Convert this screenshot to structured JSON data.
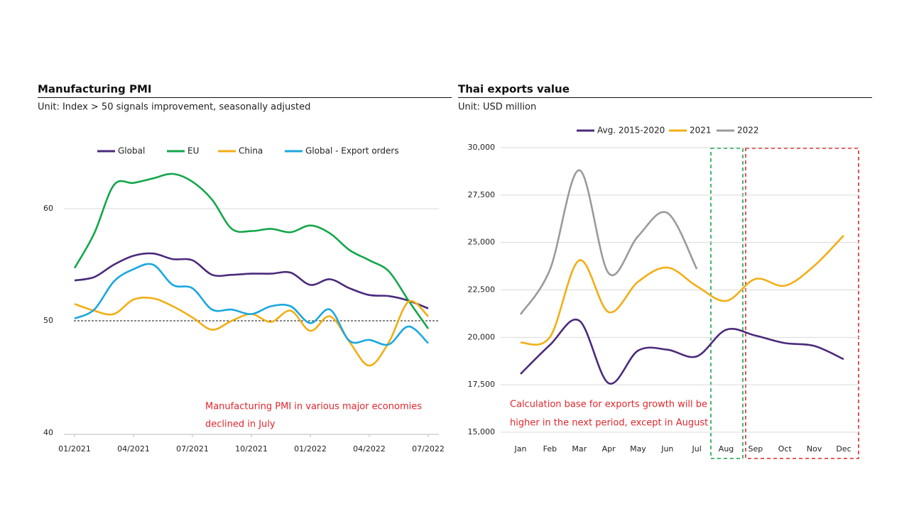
{
  "chart_data": [
    {
      "type": "line",
      "title": "Manufacturing PMI",
      "subtitle": "Unit: Index > 50 signals improvement, seasonally adjusted",
      "categories": [
        "01/2021",
        null,
        null,
        "04/2021",
        null,
        null,
        "07/2021",
        null,
        null,
        "10/2021",
        null,
        null,
        "01/2022",
        null,
        null,
        "04/2022",
        null,
        null,
        "07/2022"
      ],
      "series": [
        {
          "name": "Global",
          "color": "#4b2a7b",
          "values": [
            53.6,
            53.9,
            55.0,
            55.8,
            56.0,
            55.5,
            55.4,
            54.1,
            54.1,
            54.2,
            54.2,
            54.3,
            53.2,
            53.7,
            52.9,
            52.3,
            52.2,
            51.8,
            51.1
          ]
        },
        {
          "name": "EU",
          "color": "#13a64a",
          "values": [
            54.7,
            57.8,
            62.1,
            62.3,
            62.7,
            63.1,
            62.4,
            60.8,
            58.2,
            58.0,
            58.2,
            57.9,
            58.5,
            57.8,
            56.3,
            55.4,
            54.4,
            51.8,
            49.3
          ]
        },
        {
          "name": "China",
          "color": "#f2ae14",
          "values": [
            51.5,
            50.9,
            50.6,
            51.9,
            52.0,
            51.3,
            50.3,
            49.2,
            50.0,
            50.6,
            49.9,
            50.9,
            49.1,
            50.4,
            48.1,
            46.0,
            48.1,
            51.7,
            50.4
          ]
        },
        {
          "name": "Global - Export orders",
          "color": "#1aa7e0",
          "values": [
            50.2,
            51.0,
            53.5,
            54.6,
            55.0,
            53.2,
            52.9,
            51.0,
            51.0,
            50.6,
            51.3,
            51.3,
            49.8,
            51.0,
            48.2,
            48.3,
            47.9,
            49.5,
            48.0
          ]
        }
      ],
      "ylim": [
        40,
        65
      ],
      "yticks": [
        40,
        50,
        60
      ],
      "reference_line": 50,
      "grid": true,
      "legend": "top",
      "annotation": [
        "Manufacturing PMI in various major economies",
        "declined in July"
      ]
    },
    {
      "type": "line",
      "title": "Thai exports value",
      "subtitle": "Unit: USD million",
      "categories": [
        "Jan",
        "Feb",
        "Mar",
        "Apr",
        "May",
        "Jun",
        "Jul",
        "Aug",
        "Sep",
        "Oct",
        "Nov",
        "Dec"
      ],
      "series": [
        {
          "name": "Avg. 2015-2020",
          "color": "#4b2a7b",
          "values": [
            18070,
            19600,
            20880,
            17580,
            19300,
            19350,
            19000,
            20400,
            20090,
            19700,
            19550,
            18850
          ]
        },
        {
          "name": "2021",
          "color": "#f2ae14",
          "values": [
            19720,
            20015,
            24060,
            21330,
            22930,
            23680,
            22700,
            21920,
            23080,
            22720,
            23770,
            25370
          ]
        },
        {
          "name": "2022",
          "color": "#9a9a9a",
          "values": [
            21210,
            23570,
            28810,
            23380,
            25330,
            26560,
            23600,
            null,
            null,
            null,
            null,
            null
          ]
        }
      ],
      "ylim": [
        15000,
        30000
      ],
      "yticks": [
        {
          "value": 15000,
          "label": "15,000"
        },
        {
          "value": 17500,
          "label": "17,500"
        },
        {
          "value": 20000,
          "label": "20,000"
        },
        {
          "value": 22500,
          "label": "22,500"
        },
        {
          "value": 25000,
          "label": "25,000"
        },
        {
          "value": 27500,
          "label": "27,500"
        },
        {
          "value": 30000,
          "label": "30,000"
        }
      ],
      "grid": true,
      "legend": "top",
      "annotation": [
        "Calculation base for exports growth will be",
        "higher in the next period, except in August"
      ]
    }
  ]
}
